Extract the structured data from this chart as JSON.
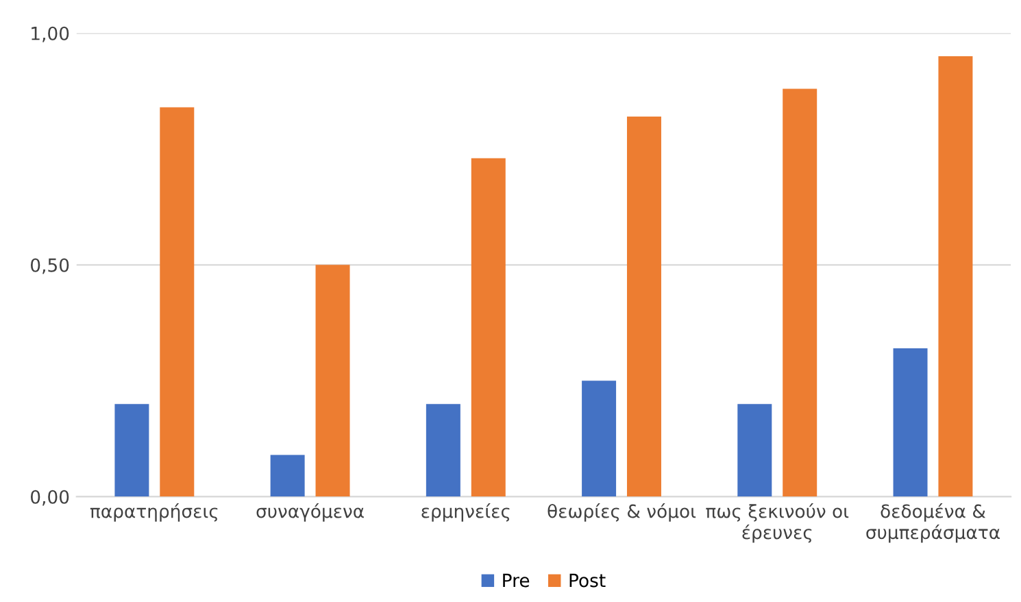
{
  "chart_data": {
    "type": "bar",
    "categories": [
      "παρατηρήσεις",
      "συναγόμενα",
      "ερμηνείες",
      "θεωρίες & νόμοι",
      "πως ξεκινούν οι\nέρευνες",
      "δεδομένα &\nσυμπεράσματα"
    ],
    "series": [
      {
        "name": "Pre",
        "color": "#4472c4",
        "values": [
          0.2,
          0.09,
          0.2,
          0.25,
          0.2,
          0.32
        ]
      },
      {
        "name": "Post",
        "color": "#ed7d31",
        "values": [
          0.84,
          0.5,
          0.73,
          0.82,
          0.88,
          0.95
        ]
      }
    ],
    "ylim": [
      0,
      1.0
    ],
    "yticks": [
      {
        "value": 0,
        "label": "0,00"
      },
      {
        "value": 0.5,
        "label": "0,50"
      },
      {
        "value": 1.0,
        "label": "1,00"
      }
    ],
    "grid": "y",
    "legend": "bottom"
  }
}
